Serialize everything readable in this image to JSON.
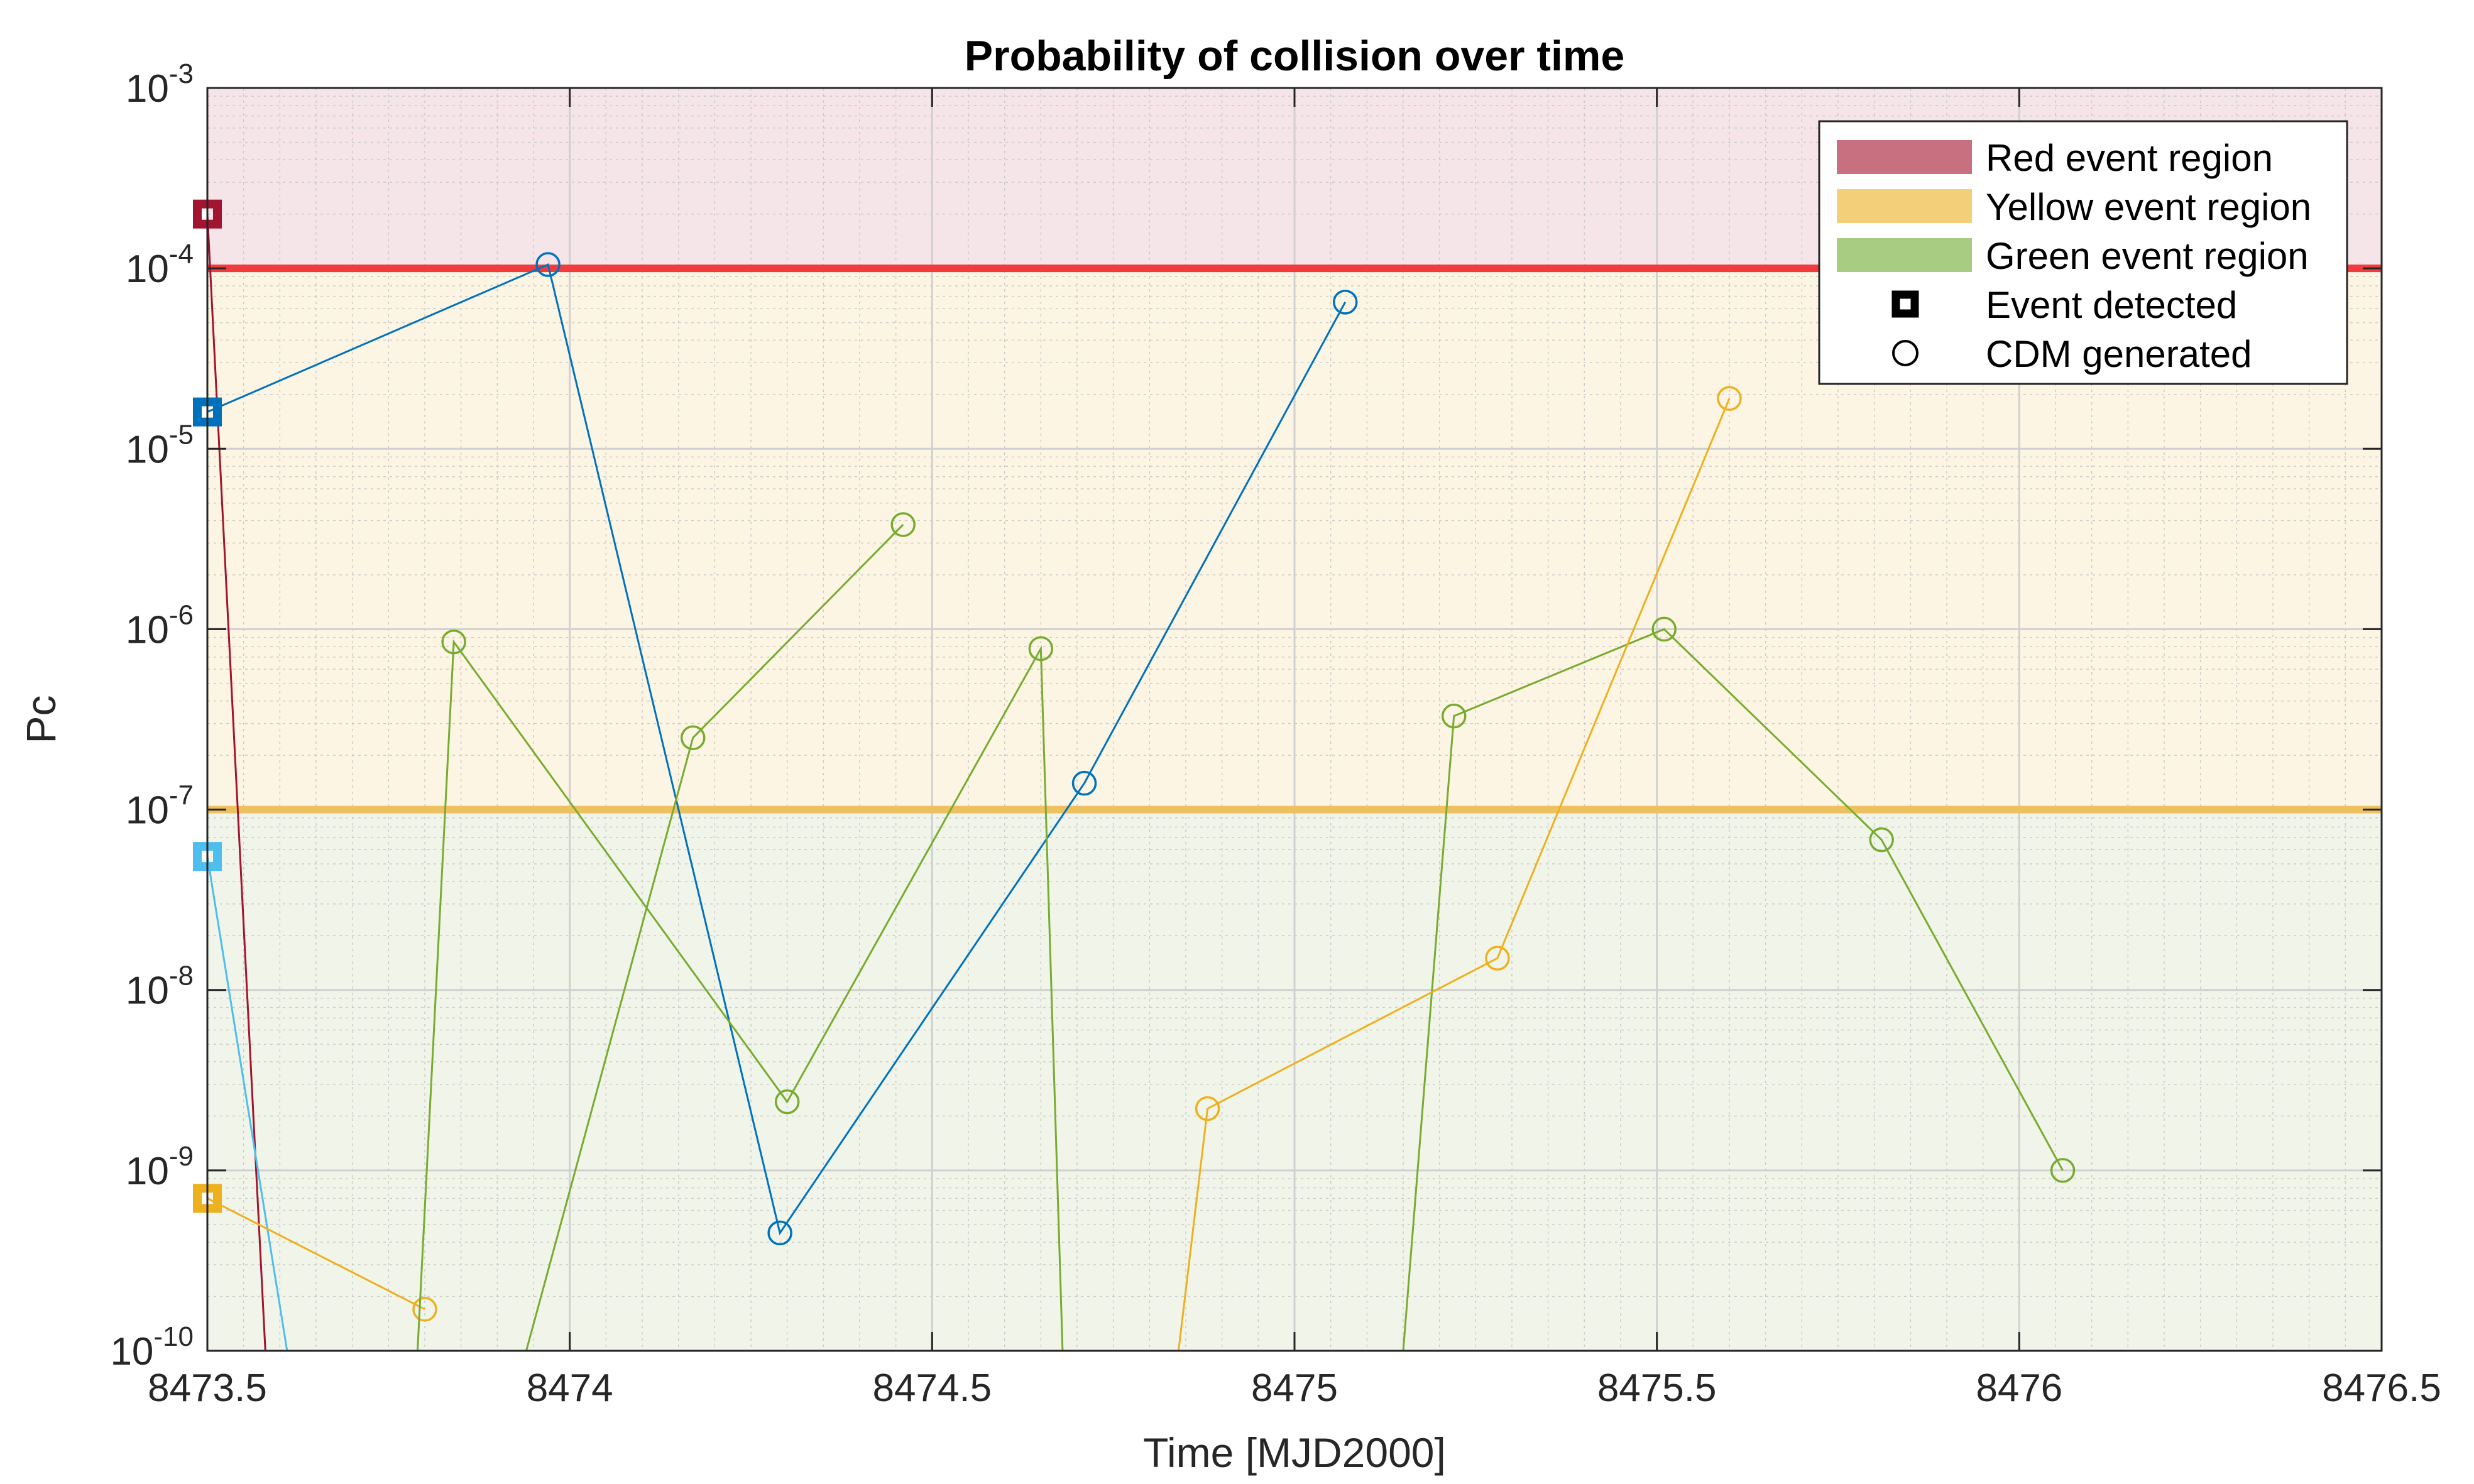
{
  "chart_data": {
    "type": "line",
    "title": "Probability of collision over time",
    "xlabel": "Time [MJD2000]",
    "ylabel": "Pc",
    "xlim": [
      8473.5,
      8476.5
    ],
    "ylim": [
      1e-10,
      0.001
    ],
    "yscale": "log",
    "grid": true,
    "minor_grid": true,
    "legend_position": "top-right",
    "x_ticks": [
      8473.5,
      8474,
      8474.5,
      8475,
      8475.5,
      8476,
      8476.5
    ],
    "x_tick_labels": [
      "8473.5",
      "8474",
      "8474.5",
      "8475",
      "8475.5",
      "8476",
      "8476.5"
    ],
    "y_ticks": [
      {
        "value": 1e-10,
        "base": "10",
        "exp": "-10"
      },
      {
        "value": 1e-09,
        "base": "10",
        "exp": "-9"
      },
      {
        "value": 1e-08,
        "base": "10",
        "exp": "-8"
      },
      {
        "value": 1e-07,
        "base": "10",
        "exp": "-7"
      },
      {
        "value": 1e-06,
        "base": "10",
        "exp": "-6"
      },
      {
        "value": 1e-05,
        "base": "10",
        "exp": "-5"
      },
      {
        "value": 0.0001,
        "base": "10",
        "exp": "-4"
      },
      {
        "value": 0.001,
        "base": "10",
        "exp": "-3"
      }
    ],
    "regions": [
      {
        "label": "Red event region",
        "ymin": 0.0001,
        "ymax": 0.001,
        "fill": "#f5e4e8",
        "swatch": "#c87080"
      },
      {
        "label": "Yellow event region",
        "ymin": 1e-07,
        "ymax": 0.0001,
        "fill": "#fdf5e4",
        "swatch": "#f2cf78"
      },
      {
        "label": "Green event region",
        "ymin": 1e-10,
        "ymax": 1e-07,
        "fill": "#f1f5e9",
        "swatch": "#a8cc82"
      }
    ],
    "thresholds": [
      {
        "value": 0.0001,
        "color": "#f03c3c"
      },
      {
        "value": 1e-07,
        "color": "#eec160"
      }
    ],
    "legend": [
      {
        "kind": "swatch",
        "label": "Red event region",
        "color": "#c87080"
      },
      {
        "kind": "swatch",
        "label": "Yellow event region",
        "color": "#f2cf78"
      },
      {
        "kind": "swatch",
        "label": "Green event region",
        "color": "#a8cc82"
      },
      {
        "kind": "square-marker",
        "label": "Event detected",
        "color": "#000000"
      },
      {
        "kind": "circle-marker",
        "label": "CDM generated",
        "color": "#000000"
      }
    ],
    "series": [
      {
        "color": "#a2142f",
        "event_detected": {
          "x": 8473.5,
          "y": 0.0002
        },
        "points": [
          {
            "x": 8473.5,
            "y": 0.0002,
            "marker": false
          },
          {
            "x": 8473.58,
            "y": 1e-10,
            "marker": false
          }
        ]
      },
      {
        "color": "#0072bd",
        "event_detected": {
          "x": 8473.5,
          "y": 1.6e-05
        },
        "points": [
          {
            "x": 8473.5,
            "y": 1.6e-05,
            "marker": false
          },
          {
            "x": 8473.97,
            "y": 0.000105,
            "marker": true
          },
          {
            "x": 8474.29,
            "y": 4.5e-10,
            "marker": true
          },
          {
            "x": 8474.71,
            "y": 1.4e-07,
            "marker": true
          },
          {
            "x": 8475.07,
            "y": 6.5e-05,
            "marker": true
          }
        ]
      },
      {
        "color": "#4dbeee",
        "event_detected": {
          "x": 8473.5,
          "y": 5.5e-08
        },
        "points": [
          {
            "x": 8473.5,
            "y": 5.5e-08,
            "marker": false
          },
          {
            "x": 8473.61,
            "y": 1e-10,
            "marker": false
          }
        ]
      },
      {
        "color": "#edb120",
        "event_detected": {
          "x": 8473.5,
          "y": 7e-10
        },
        "points": [
          {
            "x": 8473.5,
            "y": 7e-10,
            "marker": false
          },
          {
            "x": 8473.8,
            "y": 1.7e-10,
            "marker": true
          }
        ]
      },
      {
        "color": "#77ac30",
        "points": [
          {
            "x": 8473.79,
            "y": 1e-10,
            "marker": false
          },
          {
            "x": 8473.84,
            "y": 8.5e-07,
            "marker": true
          },
          {
            "x": 8474.3,
            "y": 2.4e-09,
            "marker": true
          },
          {
            "x": 8474.65,
            "y": 7.8e-07,
            "marker": true
          },
          {
            "x": 8474.68,
            "y": 1e-10,
            "marker": false
          }
        ]
      },
      {
        "color": "#77ac30",
        "points": [
          {
            "x": 8473.94,
            "y": 1e-10,
            "marker": false
          },
          {
            "x": 8474.17,
            "y": 2.5e-07,
            "marker": true
          },
          {
            "x": 8474.46,
            "y": 3.8e-06,
            "marker": true
          }
        ]
      },
      {
        "color": "#77ac30",
        "points": [
          {
            "x": 8475.15,
            "y": 1e-10,
            "marker": false
          },
          {
            "x": 8475.22,
            "y": 3.3e-07,
            "marker": true
          },
          {
            "x": 8475.51,
            "y": 1e-06,
            "marker": true
          },
          {
            "x": 8475.81,
            "y": 6.8e-08,
            "marker": true
          },
          {
            "x": 8476.06,
            "y": 1e-09,
            "marker": true
          }
        ]
      },
      {
        "color": "#edb120",
        "points": [
          {
            "x": 8474.84,
            "y": 1e-10,
            "marker": false
          },
          {
            "x": 8474.88,
            "y": 2.2e-09,
            "marker": true
          },
          {
            "x": 8475.28,
            "y": 1.5e-08,
            "marker": true
          },
          {
            "x": 8475.6,
            "y": 1.9e-05,
            "marker": true
          }
        ]
      }
    ]
  }
}
